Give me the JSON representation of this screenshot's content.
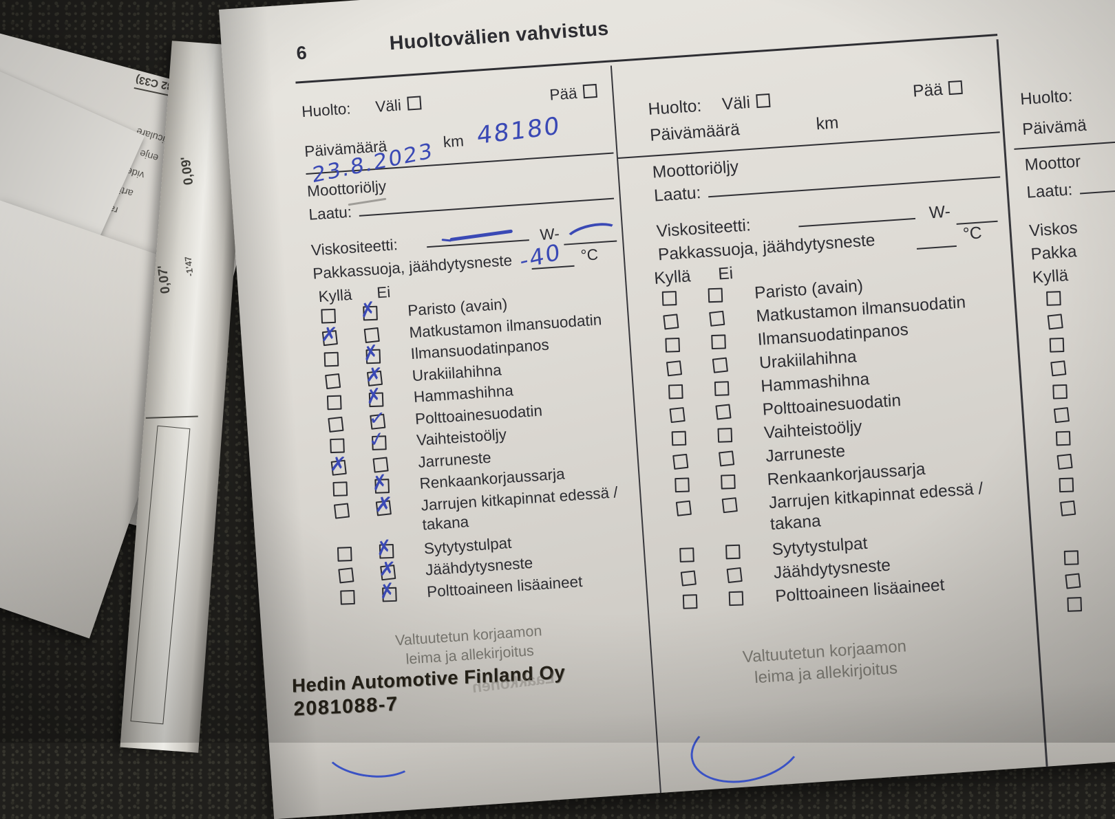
{
  "page": {
    "number": "6",
    "title": "Huoltovälien vahvistus"
  },
  "labels": {
    "huolto": "Huolto:",
    "vali": "Väli",
    "paa": "Pää",
    "paivamaara": "Päivämäärä",
    "km": "km",
    "moottorioljy": "Moottoriöljy",
    "laatu": "Laatu:",
    "viskositeetti": "Viskositeetti:",
    "w_prefix": "W-",
    "pakkassuoja": "Pakkassuoja, jäähdytysneste",
    "celsius": "°C",
    "kylla": "Kyllä",
    "ei": "Ei",
    "footer_line1": "Valtuutetun korjaamon",
    "footer_line2": "leima ja allekirjoitus"
  },
  "checklist": [
    {
      "label": "Paristo (avain)"
    },
    {
      "label": "Matkustamon ilmansuodatin"
    },
    {
      "label": "Ilmansuodatinpanos"
    },
    {
      "label": "Urakiilahihna"
    },
    {
      "label": "Hammashihna"
    },
    {
      "label": "Polttoainesuodatin"
    },
    {
      "label": "Vaihteistoöljy"
    },
    {
      "label": "Jarruneste"
    },
    {
      "label": "Renkaankorjaussarja"
    },
    {
      "label": "Jarrujen kitkapinnat edessä /",
      "label_line2": "takana"
    },
    {
      "label": "Sytytystulpat"
    },
    {
      "label": "Jäähdytysneste"
    },
    {
      "label": "Polttoaineen lisäaineet"
    }
  ],
  "entry_left": {
    "date": "23.8.2023",
    "km": "48180",
    "coolant": "-40",
    "checks": [
      "ei",
      "kylla",
      "ei",
      "ei",
      "ei",
      "ei",
      "ei",
      "kylla",
      "ei",
      "ei",
      "ei",
      "ei",
      "ei"
    ],
    "marks": [
      "x",
      "x",
      "x",
      "x",
      "x",
      "v",
      "v",
      "x",
      "x",
      "x",
      "x",
      "x",
      "x"
    ]
  },
  "entry_middle": {
    "checks": [
      null,
      null,
      null,
      null,
      null,
      null,
      null,
      null,
      null,
      null,
      null,
      null,
      null
    ]
  },
  "entry_right": {
    "visible_labels": {
      "huolto": "Huolto:",
      "paivamaara": "Päivämä",
      "moottorioljy": "Moottor",
      "laatu": "Laatu:",
      "viskositeetti": "Viskos",
      "pakkassuoja": "Pakka",
      "kylla": "Kyllä"
    },
    "checks": [
      null,
      null,
      null,
      null,
      null,
      null,
      null,
      null,
      null,
      null,
      null,
      null,
      null
    ]
  },
  "stamp": {
    "line1": "Hedin Automotive Finland Oy",
    "line2": "2081088-7"
  },
  "ink_color": "#3a49b5",
  "background_papers": {
    "ref_code": "C32 C33)",
    "upside_down_lines": [
      "rticulare",
      "enje Dell",
      "videncil Castr",
      "articula, Parte I",
      "racyjny, Części",
      "ys. Deel I",
      "certificate, Part I"
    ],
    "bold_upside_down": [
      "nen osa",
      "del"
    ],
    "spine_marks": [
      "0,09'",
      "-1'47",
      "0,07'"
    ],
    "edge_letters": "si",
    "ghost_stamp": "Laakkonen"
  }
}
